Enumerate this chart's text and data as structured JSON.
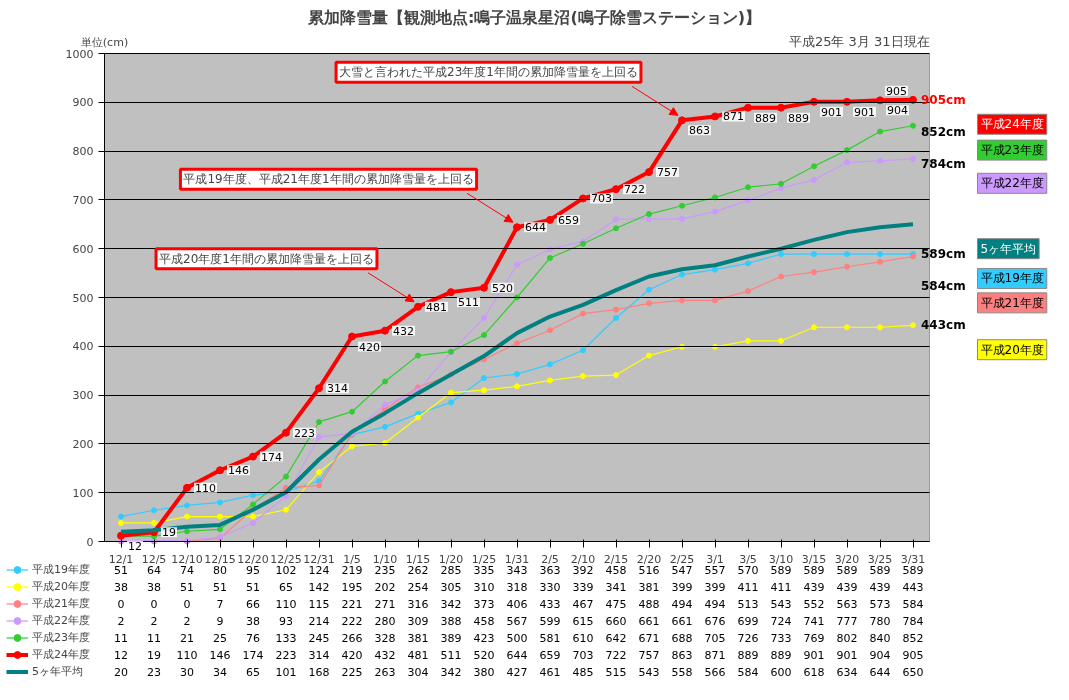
{
  "chart_data": {
    "type": "line",
    "title": "累加降雪量【観測地点:鳴子温泉星沼(鳴子除雪ステーション)】",
    "subtitle": "平成25年 3月 31日現在",
    "ylabel": "単位(cm)",
    "categories": [
      "12/1",
      "12/5",
      "12/10",
      "12/15",
      "12/20",
      "12/25",
      "12/31",
      "1/5",
      "1/10",
      "1/15",
      "1/20",
      "1/25",
      "1/31",
      "2/5",
      "2/10",
      "2/15",
      "2/20",
      "2/25",
      "3/1",
      "3/5",
      "3/10",
      "3/15",
      "3/20",
      "3/25",
      "3/31"
    ],
    "ylim": [
      0,
      1000
    ],
    "yticks": [
      0,
      100,
      200,
      300,
      400,
      500,
      600,
      700,
      800,
      900,
      1000
    ],
    "grid": "y",
    "marker": "circle",
    "data_labels": true,
    "legend": "bottom left",
    "series": [
      {
        "name": "平成19年度",
        "color": "#33ccff",
        "values": [
          51,
          64,
          74,
          80,
          95,
          102,
          124,
          219,
          235,
          262,
          285,
          335,
          343,
          363,
          392,
          458,
          516,
          547,
          557,
          570,
          589,
          589,
          589,
          589,
          589
        ]
      },
      {
        "name": "平成20年度",
        "color": "#ffff00",
        "values": [
          38,
          38,
          51,
          51,
          51,
          65,
          142,
          195,
          202,
          254,
          305,
          310,
          318,
          330,
          339,
          341,
          381,
          399,
          399,
          411,
          411,
          439,
          439,
          439,
          443
        ]
      },
      {
        "name": "平成21年度",
        "color": "#ff8080",
        "values": [
          0,
          0,
          0,
          7,
          66,
          110,
          115,
          221,
          271,
          316,
          342,
          373,
          406,
          433,
          467,
          475,
          488,
          494,
          494,
          513,
          543,
          552,
          563,
          573,
          584
        ]
      },
      {
        "name": "平成22年度",
        "color": "#cc99ff",
        "values": [
          2,
          2,
          2,
          9,
          38,
          93,
          214,
          222,
          280,
          309,
          388,
          458,
          567,
          599,
          615,
          660,
          661,
          661,
          676,
          699,
          724,
          741,
          777,
          780,
          784
        ]
      },
      {
        "name": "平成23年度",
        "color": "#33cc33",
        "values": [
          11,
          11,
          21,
          25,
          76,
          133,
          245,
          266,
          328,
          381,
          389,
          423,
          500,
          581,
          610,
          642,
          671,
          688,
          705,
          726,
          733,
          769,
          802,
          840,
          852
        ]
      },
      {
        "name": "平成24年度",
        "color": "#ff0000",
        "values": [
          12,
          19,
          110,
          146,
          174,
          223,
          314,
          420,
          432,
          481,
          511,
          520,
          644,
          659,
          703,
          722,
          757,
          863,
          871,
          889,
          889,
          901,
          901,
          904,
          905
        ]
      },
      {
        "name": "5ヶ年平均",
        "color": "#008080",
        "marker": "none",
        "values": [
          20,
          23,
          30,
          34,
          65,
          101,
          168,
          225,
          263,
          304,
          342,
          380,
          427,
          461,
          485,
          515,
          543,
          558,
          566,
          584,
          600,
          618,
          634,
          644,
          650
        ]
      }
    ],
    "annotations": [
      {
        "text": "大雪と言われた平成23年度1年間の累加降雪量を上回る",
        "x": "2/25",
        "y": 863
      },
      {
        "text": "平成19年度、平成21年度1年間の累加降雪量を上回る",
        "x": "1/31",
        "y": 644
      },
      {
        "text": "平成20年度1年間の累加降雪量を上回る",
        "x": "1/15",
        "y": 481
      },
      {
        "text": "12",
        "x": "12/1",
        "y": 12
      },
      {
        "text": "19",
        "x": "12/5",
        "y": 19
      },
      {
        "text": "110",
        "x": "12/10",
        "y": 110
      },
      {
        "text": "146",
        "x": "12/15",
        "y": 146
      },
      {
        "text": "174",
        "x": "12/20",
        "y": 174
      },
      {
        "text": "223",
        "x": "12/25",
        "y": 223
      },
      {
        "text": "314",
        "x": "12/31",
        "y": 314
      },
      {
        "text": "420",
        "x": "1/5",
        "y": 420
      },
      {
        "text": "432",
        "x": "1/10",
        "y": 432
      },
      {
        "text": "481",
        "x": "1/15",
        "y": 481
      },
      {
        "text": "511",
        "x": "1/20",
        "y": 511
      },
      {
        "text": "520",
        "x": "1/25",
        "y": 520
      },
      {
        "text": "644",
        "x": "1/31",
        "y": 644
      },
      {
        "text": "659",
        "x": "2/5",
        "y": 659
      },
      {
        "text": "703",
        "x": "2/10",
        "y": 703
      },
      {
        "text": "722",
        "x": "2/15",
        "y": 722
      },
      {
        "text": "757",
        "x": "2/20",
        "y": 757
      },
      {
        "text": "863",
        "x": "2/25",
        "y": 863
      },
      {
        "text": "871",
        "x": "3/1",
        "y": 871
      },
      {
        "text": "889",
        "x": "3/5",
        "y": 889
      },
      {
        "text": "889",
        "x": "3/10",
        "y": 889
      },
      {
        "text": "901",
        "x": "3/15",
        "y": 901
      },
      {
        "text": "901",
        "x": "3/20",
        "y": 901
      },
      {
        "text": "904",
        "x": "3/25",
        "y": 904
      },
      {
        "text": "905",
        "x": "3/31",
        "y": 905
      },
      {
        "text": "905cm",
        "x": "3/31",
        "y": 905
      },
      {
        "text": "852cm",
        "x": "3/31",
        "y": 852
      },
      {
        "text": "784cm",
        "x": "3/31",
        "y": 784
      },
      {
        "text": "589cm",
        "x": "3/31",
        "y": 589
      },
      {
        "text": "584cm",
        "x": "3/31",
        "y": 584
      },
      {
        "text": "443cm",
        "x": "3/31",
        "y": 443
      }
    ]
  }
}
